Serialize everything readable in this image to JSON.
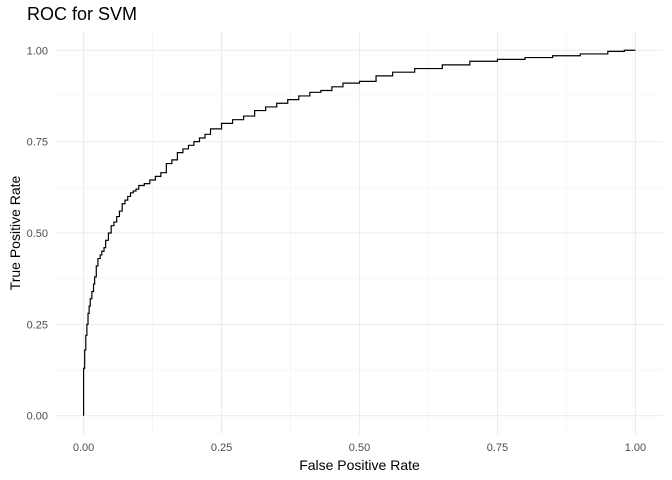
{
  "chart_data": {
    "type": "line",
    "title": "ROC for SVM",
    "xlabel": "False Positive Rate",
    "ylabel": "True Positive Rate",
    "xlim": [
      0,
      1
    ],
    "ylim": [
      0,
      1
    ],
    "grid": true,
    "legend": "none",
    "x_ticks": [
      "0.00",
      "0.25",
      "0.50",
      "0.75",
      "1.00"
    ],
    "y_ticks": [
      "0.00",
      "0.25",
      "0.50",
      "0.75",
      "1.00"
    ],
    "colors": {
      "line": "#000000",
      "grid_major": "#ebebeb",
      "grid_minor": "#f2f2f2",
      "background": "#ffffff"
    },
    "series": [
      {
        "x": [
          0.0,
          0.0,
          0.002,
          0.004,
          0.006,
          0.008,
          0.01,
          0.012,
          0.015,
          0.018,
          0.02,
          0.023,
          0.026,
          0.03,
          0.033,
          0.037,
          0.04,
          0.045,
          0.05,
          0.055,
          0.06,
          0.065,
          0.07,
          0.075,
          0.08,
          0.085,
          0.09,
          0.095,
          0.1,
          0.11,
          0.12,
          0.13,
          0.14,
          0.15,
          0.16,
          0.17,
          0.18,
          0.19,
          0.2,
          0.21,
          0.22,
          0.23,
          0.25,
          0.27,
          0.29,
          0.31,
          0.33,
          0.35,
          0.37,
          0.39,
          0.41,
          0.43,
          0.45,
          0.47,
          0.5,
          0.53,
          0.56,
          0.6,
          0.65,
          0.7,
          0.75,
          0.8,
          0.85,
          0.9,
          0.95,
          0.98,
          1.0
        ],
        "y": [
          0.0,
          0.08,
          0.13,
          0.18,
          0.22,
          0.25,
          0.28,
          0.3,
          0.32,
          0.34,
          0.36,
          0.38,
          0.41,
          0.43,
          0.44,
          0.45,
          0.46,
          0.48,
          0.5,
          0.52,
          0.53,
          0.545,
          0.56,
          0.58,
          0.59,
          0.6,
          0.61,
          0.615,
          0.62,
          0.63,
          0.635,
          0.645,
          0.655,
          0.665,
          0.69,
          0.7,
          0.72,
          0.73,
          0.74,
          0.75,
          0.76,
          0.77,
          0.785,
          0.8,
          0.81,
          0.82,
          0.835,
          0.845,
          0.855,
          0.865,
          0.875,
          0.885,
          0.89,
          0.9,
          0.91,
          0.915,
          0.93,
          0.94,
          0.95,
          0.96,
          0.97,
          0.975,
          0.98,
          0.985,
          0.99,
          0.997,
          1.0
        ]
      }
    ]
  }
}
